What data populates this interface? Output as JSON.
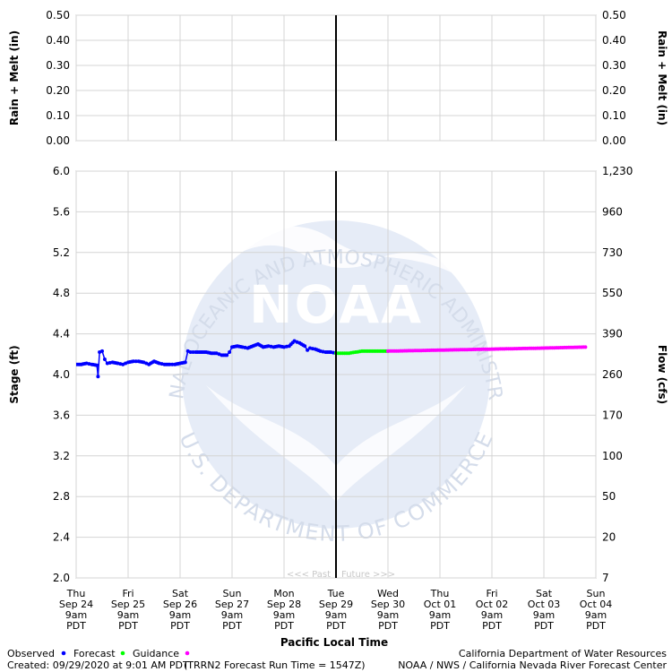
{
  "chart_data": {
    "type": "line",
    "rain_panel": {
      "ylabel": "Rain + Melt (in)",
      "yticks": [
        "0.50",
        "0.40",
        "0.30",
        "0.20",
        "0.10",
        "0.00"
      ],
      "ylim": [
        0,
        0.5
      ]
    },
    "stage_panel": {
      "ylabel_left": "Stage (ft)",
      "ylabel_right": "Flow (cfs)",
      "ylim": [
        2.0,
        6.0
      ],
      "yticks_left": [
        "6.0",
        "5.6",
        "5.2",
        "4.8",
        "4.4",
        "4.0",
        "3.6",
        "3.2",
        "2.8",
        "2.4",
        "2.0"
      ],
      "yticks_right": [
        "1,230",
        "960",
        "730",
        "550",
        "390",
        "260",
        "170",
        "100",
        "50",
        "20",
        "7"
      ],
      "past_label": "<<< Past",
      "future_label": "Future >>>",
      "watermark": {
        "text_top": "NATIONAL OCEANIC AND ATMOSPHERIC ADMINISTRATION",
        "text_center": "NOAA",
        "text_bottom": "U.S. DEPARTMENT OF COMMERCE"
      }
    },
    "xlabel": "Pacific Local Time",
    "xlim_days": [
      0,
      10
    ],
    "now_day": 5,
    "x_ticks": [
      {
        "day": "Thu",
        "date": "Sep 24",
        "time": "9am",
        "tz": "PDT"
      },
      {
        "day": "Fri",
        "date": "Sep 25",
        "time": "9am",
        "tz": "PDT"
      },
      {
        "day": "Sat",
        "date": "Sep 26",
        "time": "9am",
        "tz": "PDT"
      },
      {
        "day": "Sun",
        "date": "Sep 27",
        "time": "9am",
        "tz": "PDT"
      },
      {
        "day": "Mon",
        "date": "Sep 28",
        "time": "9am",
        "tz": "PDT"
      },
      {
        "day": "Tue",
        "date": "Sep 29",
        "time": "9am",
        "tz": "PDT"
      },
      {
        "day": "Wed",
        "date": "Sep 30",
        "time": "9am",
        "tz": "PDT"
      },
      {
        "day": "Thu",
        "date": "Oct 01",
        "time": "9am",
        "tz": "PDT"
      },
      {
        "day": "Fri",
        "date": "Oct 02",
        "time": "9am",
        "tz": "PDT"
      },
      {
        "day": "Sat",
        "date": "Oct 03",
        "time": "9am",
        "tz": "PDT"
      },
      {
        "day": "Sun",
        "date": "Oct 04",
        "time": "9am",
        "tz": "PDT"
      }
    ],
    "series": [
      {
        "name": "Observed",
        "color": "#0000ff",
        "points": [
          [
            0.0,
            4.1
          ],
          [
            0.1,
            4.1
          ],
          [
            0.2,
            4.11
          ],
          [
            0.3,
            4.1
          ],
          [
            0.4,
            4.09
          ],
          [
            0.42,
            3.98
          ],
          [
            0.45,
            4.22
          ],
          [
            0.5,
            4.23
          ],
          [
            0.55,
            4.15
          ],
          [
            0.6,
            4.11
          ],
          [
            0.7,
            4.12
          ],
          [
            0.8,
            4.11
          ],
          [
            0.9,
            4.1
          ],
          [
            1.0,
            4.12
          ],
          [
            1.1,
            4.13
          ],
          [
            1.2,
            4.13
          ],
          [
            1.3,
            4.12
          ],
          [
            1.4,
            4.1
          ],
          [
            1.5,
            4.13
          ],
          [
            1.6,
            4.11
          ],
          [
            1.7,
            4.1
          ],
          [
            1.8,
            4.1
          ],
          [
            1.9,
            4.1
          ],
          [
            2.0,
            4.11
          ],
          [
            2.1,
            4.12
          ],
          [
            2.15,
            4.23
          ],
          [
            2.2,
            4.22
          ],
          [
            2.3,
            4.22
          ],
          [
            2.4,
            4.22
          ],
          [
            2.5,
            4.22
          ],
          [
            2.6,
            4.21
          ],
          [
            2.7,
            4.21
          ],
          [
            2.8,
            4.19
          ],
          [
            2.9,
            4.19
          ],
          [
            2.95,
            4.22
          ],
          [
            3.0,
            4.27
          ],
          [
            3.1,
            4.28
          ],
          [
            3.2,
            4.27
          ],
          [
            3.3,
            4.26
          ],
          [
            3.4,
            4.28
          ],
          [
            3.5,
            4.3
          ],
          [
            3.6,
            4.27
          ],
          [
            3.7,
            4.28
          ],
          [
            3.8,
            4.27
          ],
          [
            3.9,
            4.28
          ],
          [
            4.0,
            4.27
          ],
          [
            4.1,
            4.28
          ],
          [
            4.2,
            4.33
          ],
          [
            4.3,
            4.31
          ],
          [
            4.4,
            4.28
          ],
          [
            4.45,
            4.24
          ],
          [
            4.5,
            4.26
          ],
          [
            4.6,
            4.25
          ],
          [
            4.7,
            4.23
          ],
          [
            4.8,
            4.22
          ],
          [
            4.9,
            4.22
          ],
          [
            5.0,
            4.21
          ]
        ]
      },
      {
        "name": "Forecast",
        "color": "#00ff00",
        "points": [
          [
            5.0,
            4.21
          ],
          [
            5.25,
            4.21
          ],
          [
            5.5,
            4.23
          ],
          [
            6.0,
            4.23
          ]
        ]
      },
      {
        "name": "Guidance",
        "color": "#ff00ff",
        "points": [
          [
            6.0,
            4.23
          ],
          [
            7.0,
            4.24
          ],
          [
            8.0,
            4.25
          ],
          [
            9.0,
            4.26
          ],
          [
            9.8,
            4.27
          ]
        ]
      }
    ]
  },
  "legend": {
    "observed": "Observed",
    "forecast": "Forecast",
    "guidance": "Guidance"
  },
  "footer": {
    "created": "Created: 09/29/2020 at 9:01 AM PDT",
    "run_time": "(TRRN2 Forecast Run Time = 1547Z)",
    "agency1": "California Department of Water Resources",
    "agency2": "NOAA / NWS / California Nevada River Forecast Center"
  },
  "colors": {
    "observed": "#0000ff",
    "forecast": "#00ff00",
    "guidance": "#ff00ff",
    "grid": "#d4d4d4",
    "watermark": "#dfe6f3"
  }
}
